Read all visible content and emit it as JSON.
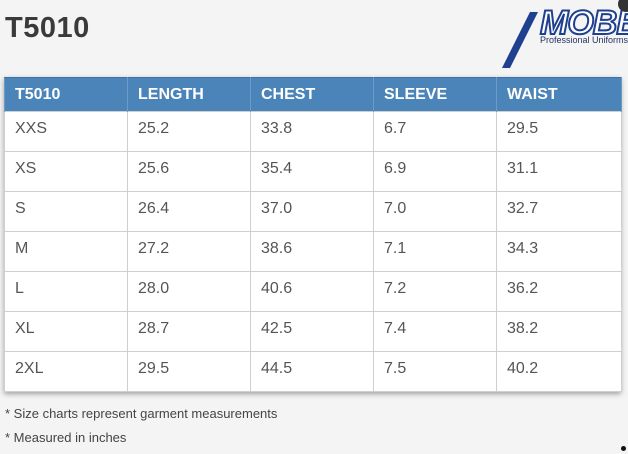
{
  "title": "T5010",
  "logo": {
    "name": "MOBB",
    "tagline": "Professional Uniforms",
    "colors": {
      "primary": "#1f3f8f",
      "text": "#ffffff"
    }
  },
  "table": {
    "header_color": "#4a84b9",
    "columns": [
      "T5010",
      "LENGTH",
      "CHEST",
      "SLEEVE",
      "WAIST"
    ],
    "rows": [
      [
        "XXS",
        "25.2",
        "33.8",
        "6.7",
        "29.5"
      ],
      [
        "XS",
        "25.6",
        "35.4",
        "6.9",
        "31.1"
      ],
      [
        "S",
        "26.4",
        "37.0",
        "7.0",
        "32.7"
      ],
      [
        "M",
        "27.2",
        "38.6",
        "7.1",
        "34.3"
      ],
      [
        "L",
        "28.0",
        "40.6",
        "7.2",
        "36.2"
      ],
      [
        "XL",
        "28.7",
        "42.5",
        "7.4",
        "38.2"
      ],
      [
        "2XL",
        "29.5",
        "44.5",
        "7.5",
        "40.2"
      ]
    ]
  },
  "notes": [
    "* Size charts represent garment measurements",
    "* Measured in inches"
  ]
}
